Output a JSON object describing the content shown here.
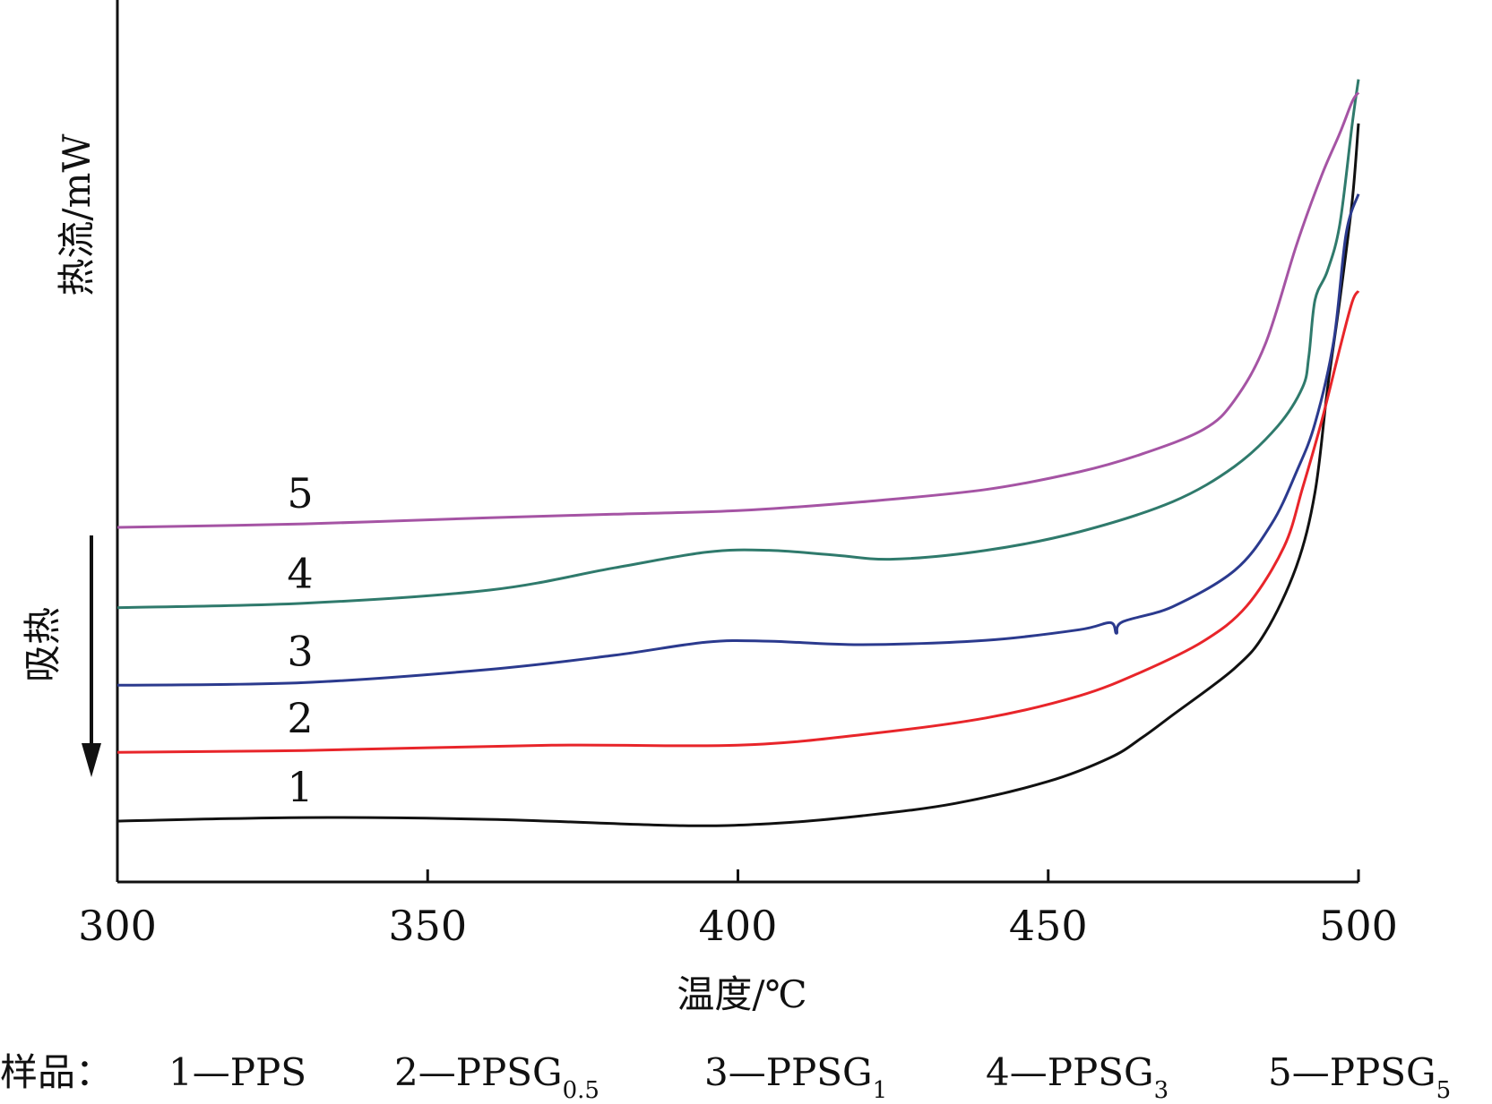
{
  "chart_data": {
    "type": "line",
    "xlabel": "温度/℃",
    "ylabel": "热流/mW",
    "endo_label": "吸热",
    "xlim": [
      300,
      500
    ],
    "xticks": [
      300,
      350,
      400,
      450,
      500
    ],
    "y_tick_labels": "none",
    "grid": false,
    "y_relative_scale": "arbitrary units, 0 = plot bottom, 100 = plot top",
    "series": [
      {
        "name": "1",
        "color": "#111111",
        "points": [
          [
            300,
            6.9
          ],
          [
            330,
            7.3
          ],
          [
            360,
            7.1
          ],
          [
            390,
            6.4
          ],
          [
            405,
            6.6
          ],
          [
            420,
            7.5
          ],
          [
            435,
            8.9
          ],
          [
            450,
            11.4
          ],
          [
            460,
            14.1
          ],
          [
            465,
            16.3
          ],
          [
            470,
            18.9
          ],
          [
            480,
            24.2
          ],
          [
            485,
            28.3
          ],
          [
            490,
            35.8
          ],
          [
            493,
            44.2
          ],
          [
            495,
            55.9
          ],
          [
            497,
            66.0
          ],
          [
            499,
            77.3
          ],
          [
            500,
            86.0
          ]
        ]
      },
      {
        "name": "2",
        "color": "#e8252a",
        "points": [
          [
            300,
            14.7
          ],
          [
            330,
            14.9
          ],
          [
            370,
            15.5
          ],
          [
            400,
            15.5
          ],
          [
            420,
            16.7
          ],
          [
            440,
            18.6
          ],
          [
            455,
            21.1
          ],
          [
            465,
            23.8
          ],
          [
            475,
            27.3
          ],
          [
            482,
            31.3
          ],
          [
            488,
            38.0
          ],
          [
            491,
            44.7
          ],
          [
            494,
            52.1
          ],
          [
            497,
            60.5
          ],
          [
            499,
            65.8
          ],
          [
            500,
            67.0
          ]
        ]
      },
      {
        "name": "3",
        "color": "#2b3a8e",
        "points": [
          [
            300,
            22.3
          ],
          [
            330,
            22.6
          ],
          [
            360,
            24.1
          ],
          [
            380,
            25.7
          ],
          [
            395,
            27.2
          ],
          [
            405,
            27.3
          ],
          [
            420,
            26.9
          ],
          [
            440,
            27.4
          ],
          [
            455,
            28.6
          ],
          [
            460,
            29.4
          ],
          [
            461,
            28.2
          ],
          [
            462,
            29.5
          ],
          [
            470,
            31.2
          ],
          [
            480,
            35.3
          ],
          [
            486,
            40.6
          ],
          [
            490,
            46.5
          ],
          [
            493,
            52.0
          ],
          [
            496,
            61.3
          ],
          [
            498,
            73.5
          ],
          [
            500,
            78.0
          ]
        ]
      },
      {
        "name": "4",
        "color": "#2f7a6c",
        "points": [
          [
            300,
            31.1
          ],
          [
            330,
            31.6
          ],
          [
            360,
            33.1
          ],
          [
            380,
            35.6
          ],
          [
            395,
            37.4
          ],
          [
            405,
            37.6
          ],
          [
            415,
            37.1
          ],
          [
            425,
            36.6
          ],
          [
            440,
            37.6
          ],
          [
            455,
            39.7
          ],
          [
            470,
            43.1
          ],
          [
            480,
            47.1
          ],
          [
            487,
            51.7
          ],
          [
            491,
            56.1
          ],
          [
            492,
            59.6
          ],
          [
            493,
            66.0
          ],
          [
            495,
            69.3
          ],
          [
            497,
            74.6
          ],
          [
            499,
            86.0
          ],
          [
            500,
            91.0
          ]
        ]
      },
      {
        "name": "5",
        "color": "#a554a4",
        "points": [
          [
            300,
            40.2
          ],
          [
            330,
            40.6
          ],
          [
            360,
            41.3
          ],
          [
            380,
            41.7
          ],
          [
            400,
            42.1
          ],
          [
            420,
            43.1
          ],
          [
            440,
            44.5
          ],
          [
            455,
            46.5
          ],
          [
            465,
            48.5
          ],
          [
            475,
            51.3
          ],
          [
            480,
            54.6
          ],
          [
            485,
            61.0
          ],
          [
            490,
            72.2
          ],
          [
            494,
            80.0
          ],
          [
            497,
            84.9
          ],
          [
            499,
            88.5
          ],
          [
            500,
            89.5
          ]
        ]
      }
    ],
    "legend_text": {
      "prefix": "样品：",
      "items": [
        {
          "main": "1—PPS",
          "sub": ""
        },
        {
          "main": "2—PPSG",
          "sub": "0.5"
        },
        {
          "main": "3—PPSG",
          "sub": "1"
        },
        {
          "main": "4—PPSG",
          "sub": "3"
        },
        {
          "main": "5—PPSG",
          "sub": "5"
        }
      ]
    }
  }
}
